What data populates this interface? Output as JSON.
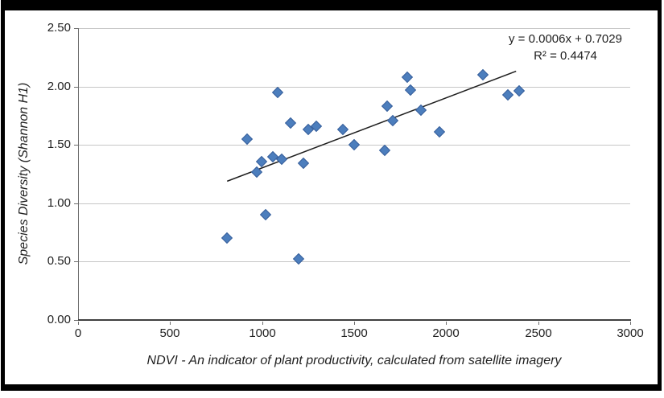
{
  "chart_data": {
    "type": "scatter",
    "xlabel": "NDVI - An indicator of plant productivity, calculated from satellite imagery",
    "ylabel": "Species Diversity (Shannon H1)",
    "xlim": [
      0,
      3000
    ],
    "ylim": [
      0,
      2.5
    ],
    "x_ticks": [
      0,
      500,
      1000,
      1500,
      2000,
      2500,
      3000
    ],
    "x_tick_labels": [
      "0",
      "500",
      "1000",
      "1500",
      "2000",
      "2500",
      "3000"
    ],
    "y_ticks": [
      0,
      0.5,
      1,
      1.5,
      2,
      2.5
    ],
    "y_tick_labels": [
      "0.00",
      "0.50",
      "1.00",
      "1.50",
      "2.00",
      "2.50"
    ],
    "grid": "horizontal",
    "legend": "none",
    "marker": "diamond",
    "marker_color": "#4c7ebd",
    "marker_border_color": "#3a619c",
    "gridline_color": "#c6c6c6",
    "points": [
      [
        810,
        0.7
      ],
      [
        920,
        1.55
      ],
      [
        970,
        1.27
      ],
      [
        995,
        1.36
      ],
      [
        1020,
        0.9
      ],
      [
        1060,
        1.4
      ],
      [
        1085,
        1.95
      ],
      [
        1105,
        1.38
      ],
      [
        1155,
        1.69
      ],
      [
        1200,
        0.52
      ],
      [
        1225,
        1.34
      ],
      [
        1250,
        1.63
      ],
      [
        1295,
        1.66
      ],
      [
        1440,
        1.63
      ],
      [
        1500,
        1.5
      ],
      [
        1665,
        1.45
      ],
      [
        1680,
        1.83
      ],
      [
        1710,
        1.71
      ],
      [
        1790,
        2.08
      ],
      [
        1805,
        1.97
      ],
      [
        1865,
        1.8
      ],
      [
        1965,
        1.61
      ],
      [
        2200,
        2.1
      ],
      [
        2335,
        1.93
      ],
      [
        2395,
        1.96
      ]
    ],
    "trendline": {
      "slope": 0.0006,
      "intercept": 0.7029,
      "x_start": 810,
      "x_end": 2380,
      "color": "#1f1f1f",
      "label_line1": "y = 0.0006x + 0.7029",
      "label_line2": "R² = 0.4474"
    }
  }
}
